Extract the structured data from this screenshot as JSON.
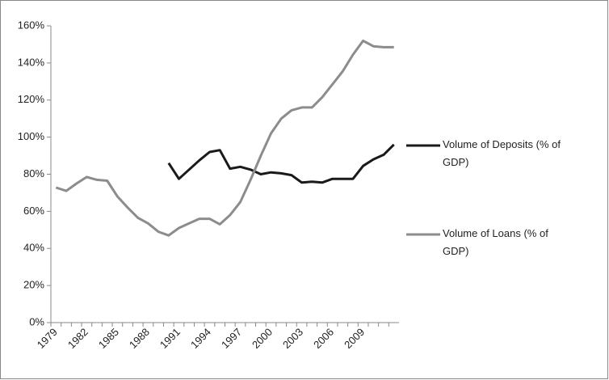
{
  "chart_data": {
    "type": "line",
    "categories": [
      "1979",
      null,
      null,
      "1982",
      null,
      null,
      "1985",
      null,
      null,
      "1988",
      null,
      null,
      "1991",
      null,
      null,
      "1994",
      null,
      null,
      "1997",
      null,
      null,
      "2000",
      null,
      null,
      "2003",
      null,
      null,
      "2006",
      null,
      null,
      "2009",
      null,
      null,
      null
    ],
    "series": [
      {
        "name": "Volume of Deposits (% of GDP)",
        "color": "#1a1a1a",
        "values": [
          null,
          null,
          null,
          null,
          null,
          null,
          null,
          null,
          null,
          null,
          null,
          86,
          77.5,
          82.5,
          87.5,
          92,
          93,
          83,
          84,
          82.5,
          80,
          81,
          80.5,
          79.5,
          75.5,
          76,
          75.5,
          77.5,
          77.5,
          77.5,
          84.5,
          88,
          90.5,
          96
        ]
      },
      {
        "name": "Volume of Loans (% of GDP)",
        "color": "#8c8c8c",
        "values": [
          72.8,
          71,
          75,
          78.5,
          77,
          76.5,
          68,
          62,
          56.5,
          53.5,
          49,
          47,
          51,
          53.5,
          56,
          56,
          53,
          58,
          65,
          77,
          90,
          102,
          110,
          114.5,
          116,
          116,
          121.5,
          128.5,
          135.5,
          144.5,
          152,
          149,
          148.5,
          148.5
        ]
      }
    ],
    "ylim": [
      0,
      160
    ],
    "yticks": [
      {
        "value": 0,
        "label": "0%"
      },
      {
        "value": 20,
        "label": "20%"
      },
      {
        "value": 40,
        "label": "40%"
      },
      {
        "value": 60,
        "label": "60%"
      },
      {
        "value": 80,
        "label": "80%"
      },
      {
        "value": 100,
        "label": "100%"
      },
      {
        "value": 120,
        "label": "120%"
      },
      {
        "value": 140,
        "label": "140%"
      },
      {
        "value": 160,
        "label": "160%"
      }
    ],
    "legend": "right"
  }
}
